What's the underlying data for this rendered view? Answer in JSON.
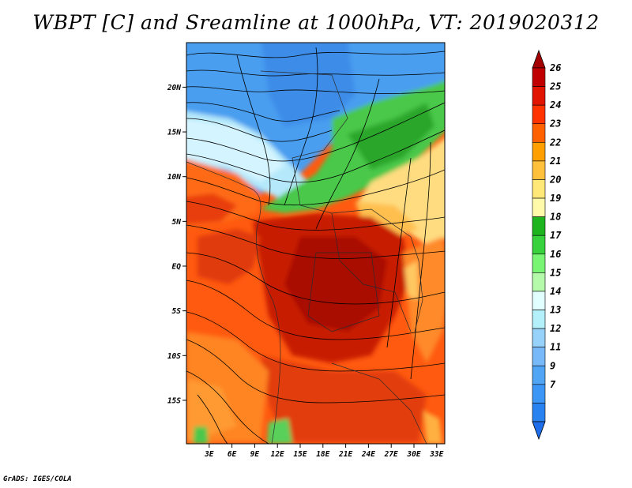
{
  "title": "WBPT [C] and Sreamline at 1000hPa, VT: 2019020312",
  "footer": "GrADS: IGES/COLA",
  "map": {
    "lat_ticks": [
      "20N",
      "15N",
      "10N",
      "5N",
      "EQ",
      "5S",
      "10S",
      "15S"
    ],
    "lon_ticks": [
      "3E",
      "6E",
      "9E",
      "12E",
      "15E",
      "18E",
      "21E",
      "24E",
      "27E",
      "30E",
      "33E"
    ],
    "lat_range": [
      -20.5,
      24.5
    ],
    "lon_range": [
      0,
      34
    ]
  },
  "colorbar": {
    "labels": [
      "7",
      "9",
      "11",
      "12",
      "13",
      "14",
      "15",
      "16",
      "17",
      "18",
      "19",
      "20",
      "21",
      "22",
      "23",
      "24",
      "25",
      "26"
    ],
    "colors": [
      "#1e6eeb",
      "#2882f0",
      "#3c96f5",
      "#50a5f5",
      "#78b9fa",
      "#96d2fa",
      "#b4f0fa",
      "#e1ffff",
      "#b4faaa",
      "#78f573",
      "#37d23c",
      "#1eb41e",
      "#fffaaa",
      "#ffe878",
      "#ffc03c",
      "#ffa000",
      "#ff6000",
      "#ff3200",
      "#e11400",
      "#c00000",
      "#a50000"
    ]
  }
}
